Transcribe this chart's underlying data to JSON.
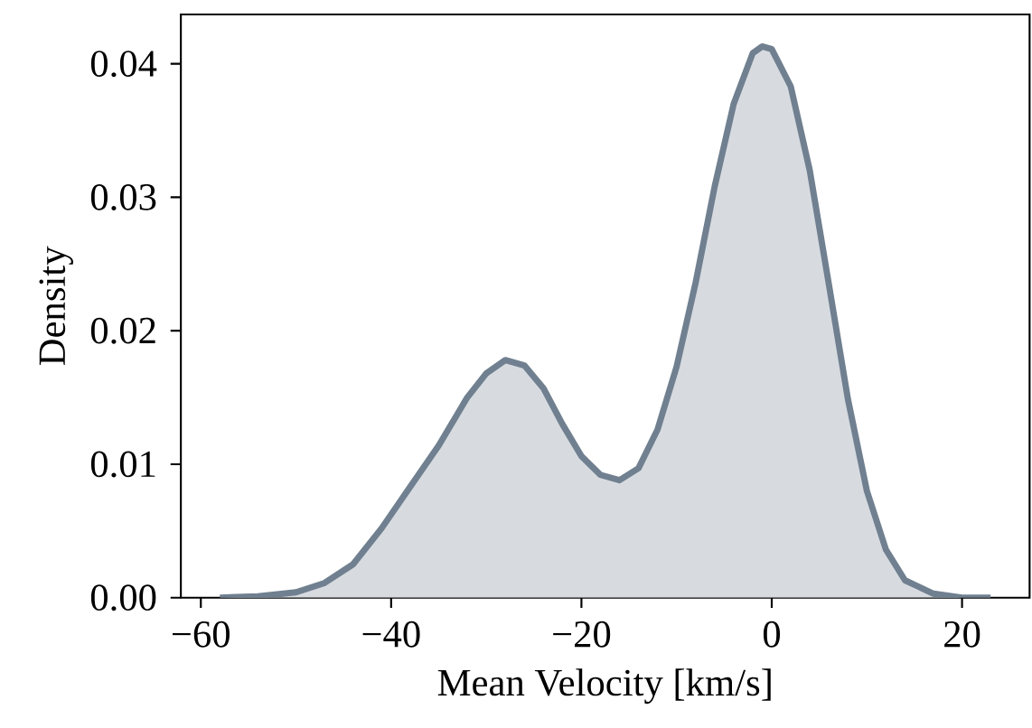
{
  "chart_data": {
    "type": "area",
    "xlabel": "Mean Velocity [km/s]",
    "ylabel": "Density",
    "x": [
      -58,
      -54,
      -50,
      -47,
      -44,
      -41,
      -38,
      -35,
      -32,
      -30,
      -28,
      -26,
      -24,
      -22,
      -20,
      -18,
      -16,
      -14,
      -12,
      -10,
      -8,
      -6,
      -4,
      -2,
      -1,
      0,
      2,
      4,
      6,
      8,
      10,
      12,
      14,
      17,
      20,
      23
    ],
    "series": [
      {
        "color": "#708090",
        "values": [
          0.0,
          0.0001,
          0.0004,
          0.0011,
          0.0025,
          0.0052,
          0.0083,
          0.0114,
          0.015,
          0.0168,
          0.0178,
          0.0174,
          0.0157,
          0.013,
          0.0106,
          0.0092,
          0.0088,
          0.0097,
          0.0126,
          0.0173,
          0.0236,
          0.0308,
          0.037,
          0.0408,
          0.0413,
          0.0411,
          0.0383,
          0.032,
          0.0235,
          0.0149,
          0.008,
          0.0036,
          0.0013,
          0.0003,
          0.0,
          0.0
        ]
      }
    ],
    "xlim": [
      -62.1,
      27.1
    ],
    "ylim": [
      0,
      0.0437
    ],
    "xticks": [
      {
        "value": -60,
        "label": "−60"
      },
      {
        "value": -40,
        "label": "−40"
      },
      {
        "value": -20,
        "label": "−20"
      },
      {
        "value": 0,
        "label": "0"
      },
      {
        "value": 20,
        "label": "20"
      }
    ],
    "yticks": [
      {
        "value": 0,
        "label": "0.00"
      },
      {
        "value": 0.01,
        "label": "0.01"
      },
      {
        "value": 0.02,
        "label": "0.02"
      },
      {
        "value": 0.03,
        "label": "0.03"
      },
      {
        "value": 0.04,
        "label": "0.04"
      }
    ]
  }
}
